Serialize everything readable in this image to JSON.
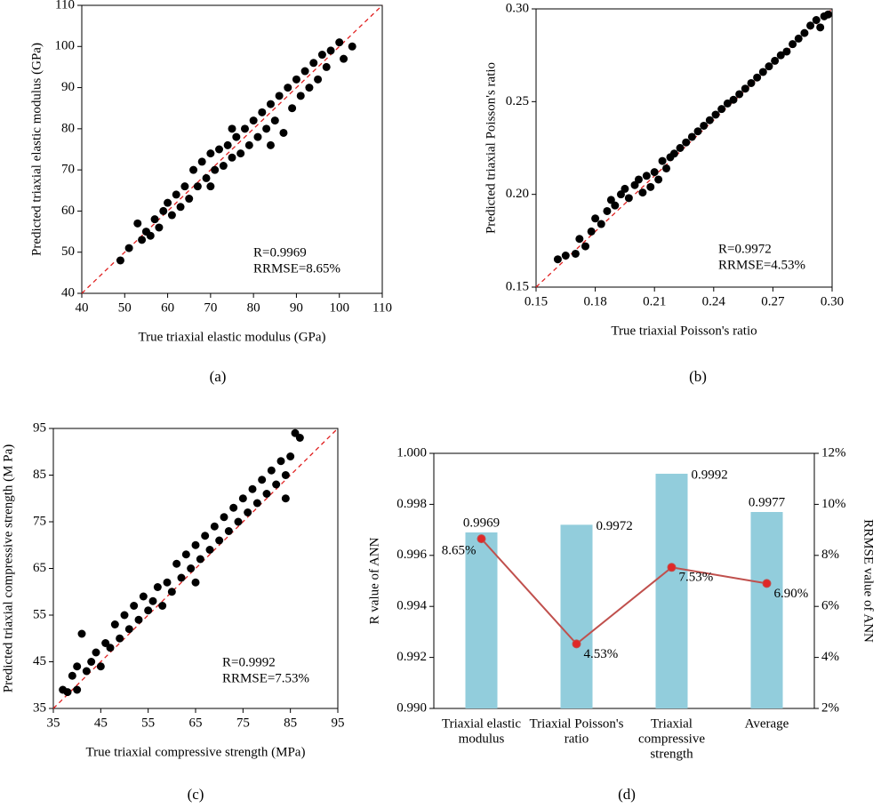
{
  "chart_data": [
    {
      "type": "scatter",
      "panel_label": "(a)",
      "xlabel": "True triaxial elastic modulus (GPa)",
      "ylabel": "Predicted triaxial elastic modulus (GPa)",
      "x": [
        49,
        51,
        53,
        54,
        55,
        56,
        57,
        58,
        59,
        60,
        61,
        62,
        63,
        64,
        65,
        66,
        67,
        68,
        69,
        70,
        71,
        72,
        73,
        74,
        75,
        76,
        77,
        78,
        79,
        80,
        81,
        82,
        83,
        84,
        85,
        86,
        87,
        88,
        89,
        90,
        91,
        92,
        93,
        94,
        95,
        96,
        97,
        98,
        100,
        101,
        103,
        70,
        75,
        84
      ],
      "series": [
        {
          "color": "#000000",
          "values": [
            48,
            51,
            57,
            53,
            55,
            54,
            58,
            56,
            60,
            62,
            59,
            64,
            61,
            66,
            63,
            70,
            66,
            72,
            68,
            74,
            70,
            75,
            71,
            76,
            73,
            78,
            74,
            80,
            76,
            82,
            78,
            84,
            80,
            86,
            82,
            88,
            79,
            90,
            85,
            92,
            88,
            94,
            90,
            96,
            92,
            98,
            95,
            99,
            101,
            97,
            100,
            66,
            80,
            76
          ]
        }
      ],
      "xlim": [
        40,
        110
      ],
      "ylim": [
        40,
        110
      ],
      "xticks": [
        40,
        50,
        60,
        70,
        80,
        90,
        100,
        110
      ],
      "yticks": [
        40,
        50,
        60,
        70,
        80,
        90,
        100,
        110
      ],
      "annotations": [
        "R=0.9969",
        "RRMSE=8.65%"
      ],
      "reference_line_color": "#e02020"
    },
    {
      "type": "scatter",
      "panel_label": "(b)",
      "xlabel": "True triaxial Poisson's ratio",
      "ylabel": "Predicted triaxial Poisson's ratio",
      "x": [
        0.161,
        0.165,
        0.17,
        0.172,
        0.175,
        0.178,
        0.18,
        0.183,
        0.186,
        0.188,
        0.19,
        0.193,
        0.195,
        0.197,
        0.2,
        0.202,
        0.204,
        0.206,
        0.208,
        0.21,
        0.212,
        0.214,
        0.216,
        0.218,
        0.22,
        0.223,
        0.226,
        0.229,
        0.232,
        0.235,
        0.238,
        0.241,
        0.244,
        0.247,
        0.25,
        0.253,
        0.256,
        0.259,
        0.262,
        0.265,
        0.268,
        0.271,
        0.274,
        0.277,
        0.28,
        0.283,
        0.286,
        0.289,
        0.292,
        0.294,
        0.296,
        0.298
      ],
      "series": [
        {
          "color": "#000000",
          "values": [
            0.165,
            0.167,
            0.168,
            0.176,
            0.172,
            0.18,
            0.187,
            0.184,
            0.191,
            0.197,
            0.194,
            0.2,
            0.203,
            0.198,
            0.205,
            0.208,
            0.201,
            0.21,
            0.204,
            0.212,
            0.208,
            0.218,
            0.214,
            0.22,
            0.222,
            0.225,
            0.228,
            0.231,
            0.234,
            0.237,
            0.24,
            0.243,
            0.246,
            0.249,
            0.251,
            0.254,
            0.257,
            0.26,
            0.263,
            0.266,
            0.269,
            0.272,
            0.275,
            0.277,
            0.281,
            0.284,
            0.287,
            0.291,
            0.294,
            0.29,
            0.296,
            0.297
          ]
        }
      ],
      "xlim": [
        0.15,
        0.3
      ],
      "ylim": [
        0.15,
        0.3
      ],
      "xticks": [
        0.15,
        0.18,
        0.21,
        0.24,
        0.27,
        {
          "value": 0.3,
          "label": "0.30"
        }
      ],
      "yticks": [
        0.15,
        {
          "value": 0.2,
          "label": "0.20"
        },
        0.25,
        {
          "value": 0.3,
          "label": "0.30"
        }
      ],
      "annotations": [
        "R=0.9972",
        "RRMSE=4.53%"
      ],
      "reference_line_color": "#e02020"
    },
    {
      "type": "scatter",
      "panel_label": "(c)",
      "xlabel": "True triaxial compressive strength (MPa)",
      "ylabel": "Predicted triaxial compressive strength (M Pa)",
      "x": [
        37,
        38,
        39,
        40,
        40,
        41,
        42,
        43,
        44,
        45,
        46,
        47,
        48,
        49,
        50,
        51,
        52,
        53,
        54,
        55,
        56,
        57,
        58,
        59,
        60,
        61,
        62,
        63,
        64,
        65,
        66,
        67,
        68,
        69,
        70,
        71,
        72,
        73,
        74,
        75,
        76,
        77,
        78,
        79,
        80,
        81,
        82,
        83,
        84,
        85,
        86,
        87,
        84,
        65
      ],
      "series": [
        {
          "color": "#000000",
          "values": [
            39,
            38.5,
            42,
            44,
            39,
            51,
            43,
            45,
            47,
            44,
            49,
            48,
            53,
            50,
            55,
            52,
            57,
            54,
            59,
            56,
            58,
            61,
            57,
            62,
            60,
            66,
            63,
            68,
            65,
            70,
            67,
            72,
            69,
            74,
            71,
            76,
            73,
            78,
            75,
            80,
            77,
            82,
            79,
            84,
            81,
            86,
            83,
            88,
            85,
            89,
            94,
            93,
            80,
            62
          ]
        }
      ],
      "xlim": [
        35,
        95
      ],
      "ylim": [
        35,
        95
      ],
      "xticks": [
        35,
        45,
        55,
        65,
        75,
        85,
        95
      ],
      "yticks": [
        35,
        45,
        55,
        65,
        75,
        85,
        95
      ],
      "annotations": [
        "R=0.9992",
        "RRMSE=7.53%"
      ],
      "reference_line_color": "#e02020"
    },
    {
      "type": "bar_line",
      "panel_label": "(d)",
      "ylabel": "R value of ANN",
      "y2label": "RRMSE value of ANN",
      "categories": [
        [
          "Triaxial elastic",
          "modulus"
        ],
        [
          "Triaxial Poisson's",
          "ratio"
        ],
        [
          "Triaxial",
          "compressive",
          "strength"
        ],
        [
          "Average"
        ]
      ],
      "series": [
        {
          "color": "#92cddc",
          "values": [
            0.9969,
            0.9972,
            0.9992,
            0.9977
          ],
          "value_labels": [
            "0.9969",
            "0.9972",
            "0.9992",
            "0.9977"
          ]
        },
        {
          "axis": "y2",
          "color": "#c0504d",
          "marker_color": "#e02828",
          "values": [
            8.65,
            4.53,
            7.53,
            6.9
          ],
          "value_labels": [
            "8.65%",
            "4.53%",
            "7.53%",
            "6.90%"
          ]
        }
      ],
      "ylim": [
        0.99,
        1.0
      ],
      "yticks": [
        {
          "value": 0.99,
          "label": "0.990"
        },
        {
          "value": 0.992,
          "label": "0.992"
        },
        {
          "value": 0.994,
          "label": "0.994"
        },
        {
          "value": 0.996,
          "label": "0.996"
        },
        {
          "value": 0.998,
          "label": "0.998"
        },
        {
          "value": 1,
          "label": "1.000"
        }
      ],
      "y2lim": [
        2,
        12
      ],
      "y2ticks": [
        {
          "value": 2,
          "label": "2%"
        },
        {
          "value": 4,
          "label": "4%"
        },
        {
          "value": 6,
          "label": "6%"
        },
        {
          "value": 8,
          "label": "8%"
        },
        {
          "value": 10,
          "label": "10%"
        },
        {
          "value": 12,
          "label": "12%"
        }
      ]
    }
  ]
}
